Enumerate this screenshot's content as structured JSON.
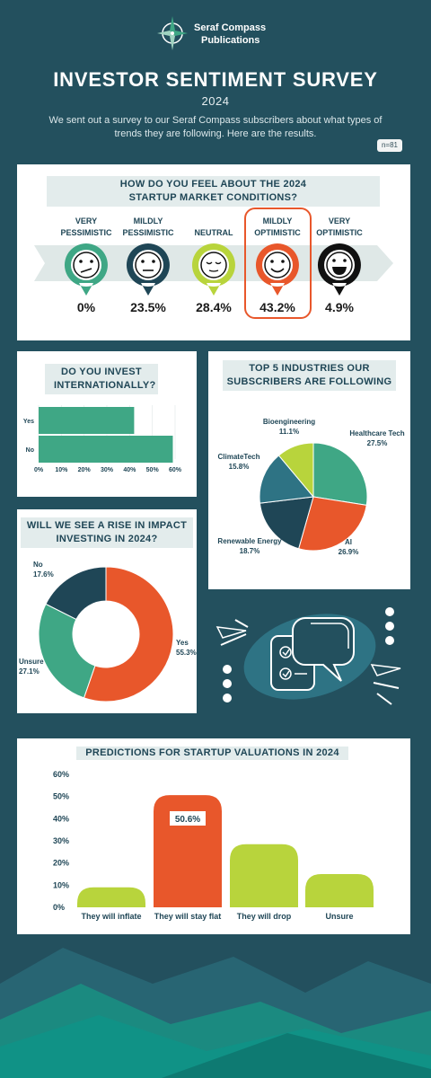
{
  "header": {
    "brand_line1": "Seraf Compass",
    "brand_line2": "Publications",
    "title": "INVESTOR SENTIMENT SURVEY",
    "year": "2024",
    "intro": "We sent out a survey to our Seraf Compass subscribers about what types of trends they are following. Here are the results.",
    "sample_size": "n=81"
  },
  "sentiment": {
    "question": "HOW DO YOU FEEL ABOUT THE 2024 STARTUP MARKET CONDITIONS?",
    "options": [
      {
        "label_line1": "VERY",
        "label_line2": "PESSIMISTIC",
        "value": "0%",
        "color": "#3fa785",
        "face": "frown"
      },
      {
        "label_line1": "MILDLY",
        "label_line2": "PESSIMISTIC",
        "value": "23.5%",
        "color": "#1f4656",
        "face": "flat"
      },
      {
        "label_line1": "NEUTRAL",
        "label_line2": "",
        "value": "28.4%",
        "color": "#b8d43c",
        "face": "calm"
      },
      {
        "label_line1": "MILDLY",
        "label_line2": "OPTIMISTIC",
        "value": "43.2%",
        "color": "#e8572b",
        "face": "smile"
      },
      {
        "label_line1": "VERY",
        "label_line2": "OPTIMISTIC",
        "value": "4.9%",
        "color": "#111111",
        "face": "grin"
      }
    ],
    "highlight_color": "#e8572b"
  },
  "chart_data": [
    {
      "type": "bar",
      "orientation": "horizontal",
      "title": "DO YOU INVEST INTERNATIONALLY?",
      "categories": [
        "Yes",
        "No"
      ],
      "values": [
        42,
        59
      ],
      "ticks": [
        "0%",
        "10%",
        "20%",
        "30%",
        "40%",
        "50%",
        "60%"
      ],
      "xlim": [
        0,
        60
      ],
      "color": "#3fa785"
    },
    {
      "type": "pie",
      "title": "TOP 5 INDUSTRIES OUR SUBSCRIBERS ARE FOLLOWING",
      "slices": [
        {
          "name": "Healthcare Tech",
          "value": 27.5,
          "label": "27.5%",
          "color": "#3fa785"
        },
        {
          "name": "AI",
          "value": 26.9,
          "label": "26.9%",
          "color": "#e8572b"
        },
        {
          "name": "Renewable Energy",
          "value": 18.7,
          "label": "18.7%",
          "color": "#1f4656"
        },
        {
          "name": "ClimateTech",
          "value": 15.8,
          "label": "15.8%",
          "color": "#2e7384"
        },
        {
          "name": "Bioengineering",
          "value": 11.1,
          "label": "11.1%",
          "color": "#b8d43c"
        }
      ]
    },
    {
      "type": "pie",
      "subtype": "donut",
      "title": "WILL WE SEE A RISE IN IMPACT INVESTING IN 2024?",
      "slices": [
        {
          "name": "Yes",
          "value": 55.3,
          "label": "55.3%",
          "color": "#e8572b"
        },
        {
          "name": "Unsure",
          "value": 27.1,
          "label": "27.1%",
          "color": "#3fa785"
        },
        {
          "name": "No",
          "value": 17.6,
          "label": "17.6%",
          "color": "#1f4656"
        }
      ]
    },
    {
      "type": "bar",
      "title": "PREDICTIONS FOR STARTUP VALUATIONS IN 2024",
      "categories": [
        "They will inflate",
        "They will stay flat",
        "They will drop",
        "Unsure"
      ],
      "values": [
        9,
        50.6,
        28.5,
        15
      ],
      "highlight_label": "50.6%",
      "ticks": [
        "0%",
        "10%",
        "20%",
        "30%",
        "40%",
        "50%",
        "60%"
      ],
      "ylim": [
        0,
        60
      ],
      "colors": [
        "#b8d43c",
        "#e8572b",
        "#b8d43c",
        "#b8d43c"
      ]
    }
  ]
}
